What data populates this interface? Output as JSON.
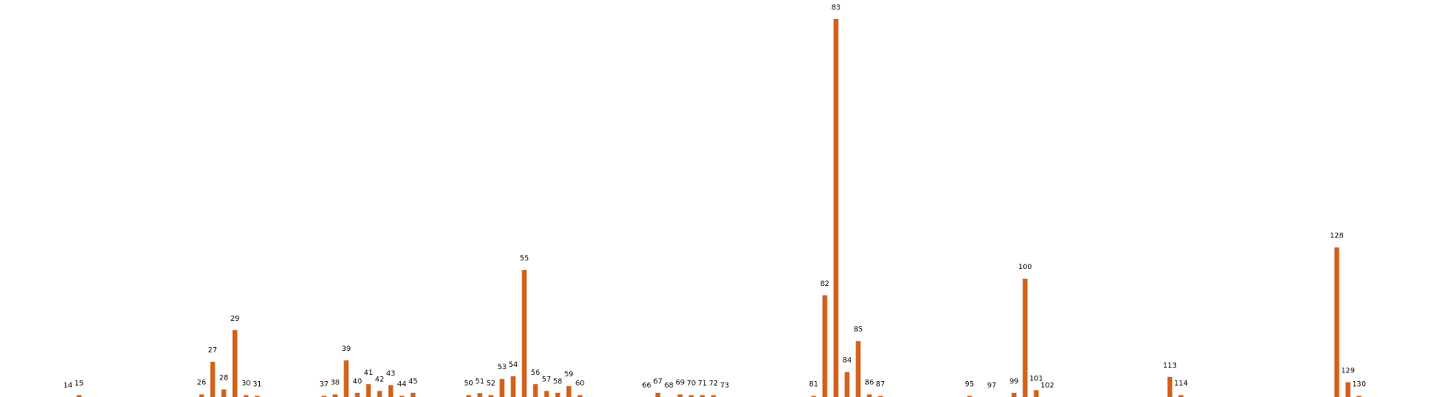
{
  "chart_data": {
    "type": "bar",
    "color": "#D2601A",
    "grid": false,
    "axes_visible": false,
    "xlim": [
      8,
      135
    ],
    "ylim": [
      0,
      100
    ],
    "x": [
      14,
      15,
      26,
      27,
      28,
      29,
      30,
      31,
      37,
      38,
      39,
      40,
      41,
      42,
      43,
      44,
      45,
      50,
      51,
      52,
      53,
      54,
      55,
      56,
      57,
      58,
      59,
      60,
      66,
      67,
      68,
      69,
      70,
      71,
      72,
      73,
      81,
      82,
      83,
      84,
      85,
      86,
      87,
      95,
      97,
      99,
      100,
      101,
      102,
      113,
      114,
      128,
      129,
      130
    ],
    "values": [
      0,
      0.5,
      0.7,
      9.3,
      2,
      17.7,
      0.5,
      0.3,
      0.3,
      0.7,
      9.7,
      1.1,
      3.4,
      1.6,
      3.1,
      0.3,
      1.1,
      0.5,
      1,
      0.5,
      4.8,
      5.5,
      33.6,
      3.4,
      1.6,
      1.1,
      2.9,
      0.5,
      0,
      1.1,
      0,
      0.7,
      0.5,
      0.5,
      0.5,
      0,
      0.3,
      26.9,
      100,
      6.6,
      14.8,
      0.7,
      0.3,
      0.3,
      0,
      1.1,
      31.3,
      1.8,
      0,
      5.3,
      0.5,
      39.6,
      3.9,
      0.3
    ],
    "labels": [
      "14",
      "15",
      "26",
      "27",
      "28",
      "29",
      "30",
      "31",
      "37",
      "38",
      "39",
      "40",
      "41",
      "42",
      "43",
      "44",
      "45",
      "50",
      "51",
      "52",
      "53",
      "54",
      "55",
      "56",
      "57",
      "58",
      "59",
      "60",
      "66",
      "67",
      "68",
      "69",
      "70",
      "71",
      "72",
      "73",
      "81",
      "82",
      "83",
      "84",
      "85",
      "86",
      "87",
      "95",
      "97",
      "99",
      "100",
      "101",
      "102",
      "113",
      "114",
      "128",
      "129",
      "130"
    ]
  }
}
